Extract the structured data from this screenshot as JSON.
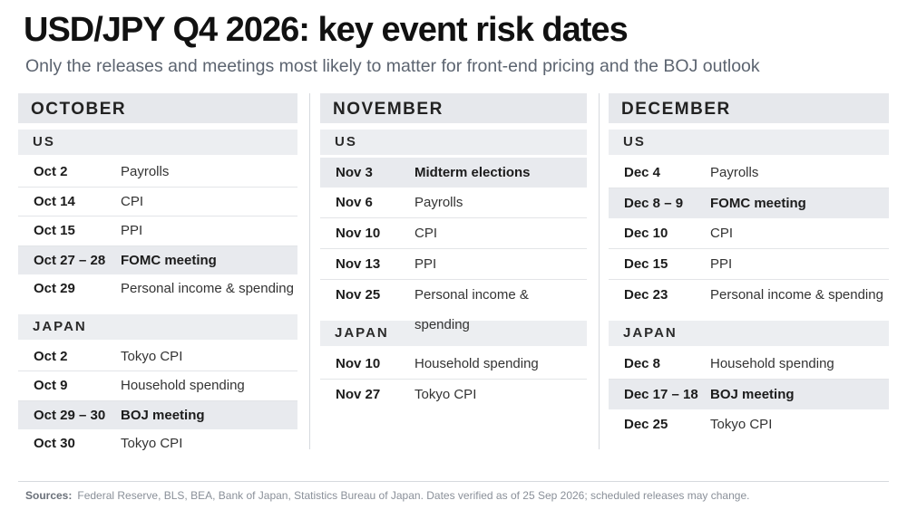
{
  "header": {
    "title": "USD/JPY Q4 2026: key event risk dates",
    "subtitle": "Only the releases and meetings most likely to matter for front-end pricing and the BOJ outlook"
  },
  "months": [
    {
      "name": "OCTOBER",
      "sections": [
        {
          "name": "US",
          "rows": [
            {
              "date": "Oct 2",
              "event": "Payrolls",
              "highlight": false
            },
            {
              "date": "Oct 14",
              "event": "CPI",
              "highlight": false
            },
            {
              "date": "Oct 15",
              "event": "PPI",
              "highlight": false
            },
            {
              "date": "Oct 27 – 28",
              "event": "FOMC meeting",
              "highlight": true
            },
            {
              "date": "Oct 29",
              "event": "Personal income & spending",
              "highlight": false
            }
          ]
        },
        {
          "name": "JAPAN",
          "rows": [
            {
              "date": "Oct 2",
              "event": "Tokyo CPI",
              "highlight": false
            },
            {
              "date": "Oct 9",
              "event": "Household spending",
              "highlight": false
            },
            {
              "date": "Oct 29 – 30",
              "event": "BOJ meeting",
              "highlight": true
            },
            {
              "date": "Oct 30",
              "event": "Tokyo CPI",
              "highlight": false
            }
          ]
        }
      ]
    },
    {
      "name": "NOVEMBER",
      "sections": [
        {
          "name": "US",
          "rows": [
            {
              "date": "Nov 3",
              "event": "Midterm elections",
              "highlight": true
            },
            {
              "date": "Nov 6",
              "event": "Payrolls",
              "highlight": false
            },
            {
              "date": "Nov 10",
              "event": "CPI",
              "highlight": false
            },
            {
              "date": "Nov 13",
              "event": "PPI",
              "highlight": false
            },
            {
              "date": "Nov 25",
              "event": "Personal income & spending",
              "highlight": false
            }
          ]
        },
        {
          "name": "JAPAN",
          "rows": [
            {
              "date": "Nov 10",
              "event": "Household spending",
              "highlight": false
            },
            {
              "date": "Nov 27",
              "event": "Tokyo CPI",
              "highlight": false
            }
          ]
        }
      ]
    },
    {
      "name": "DECEMBER",
      "sections": [
        {
          "name": "US",
          "rows": [
            {
              "date": "Dec 4",
              "event": "Payrolls",
              "highlight": false
            },
            {
              "date": "Dec 8 – 9",
              "event": "FOMC meeting",
              "highlight": true
            },
            {
              "date": "Dec 10",
              "event": "CPI",
              "highlight": false
            },
            {
              "date": "Dec 15",
              "event": "PPI",
              "highlight": false
            },
            {
              "date": "Dec 23",
              "event": "Personal income & spending",
              "highlight": false
            }
          ]
        },
        {
          "name": "JAPAN",
          "rows": [
            {
              "date": "Dec 8",
              "event": "Household spending",
              "highlight": false
            },
            {
              "date": "Dec 17 – 18",
              "event": "BOJ meeting",
              "highlight": true
            },
            {
              "date": "Dec 25",
              "event": "Tokyo CPI",
              "highlight": false
            }
          ]
        }
      ]
    }
  ],
  "footer": {
    "label": "Sources:",
    "text": "Federal Reserve, BLS, BEA, Bank of Japan, Statistics Bureau of Japan.  Dates verified as of 25 Sep 2026; scheduled releases may change."
  }
}
